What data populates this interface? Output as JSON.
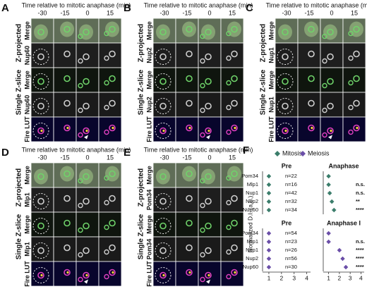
{
  "panels": [
    {
      "letter": "A",
      "title": "Time relative to mitotic anaphase (min)",
      "columns": [
        "-30",
        "-15",
        "0",
        "15"
      ],
      "groups": [
        "Z-projected",
        "Single Z-slice"
      ],
      "rows": [
        "Merge",
        "Nup60",
        "Merge",
        "Nup60",
        "Fire LUT"
      ]
    },
    {
      "letter": "B",
      "title": "Time relative to mitotic anaphase (min)",
      "columns": [
        "-30",
        "-15",
        "0",
        "15"
      ],
      "groups": [
        "Z-projected",
        "Single Z-slice"
      ],
      "rows": [
        "Merge",
        "Nup2",
        "Merge",
        "Nup2",
        "Fire LUT"
      ]
    },
    {
      "letter": "C",
      "title": "Time relative to mitotic anaphase (min)",
      "columns": [
        "-30",
        "-15",
        "0",
        "15"
      ],
      "groups": [
        "Z-projected",
        "Single Z-slice"
      ],
      "rows": [
        "Merge",
        "Nup1",
        "Merge",
        "Nup1",
        "Fire LUT"
      ]
    },
    {
      "letter": "D",
      "title": "Time relative to mitotic anaphase (min)",
      "columns": [
        "-30",
        "-15",
        "0",
        "15"
      ],
      "groups": [
        "Z-projected",
        "Single Z-slice"
      ],
      "rows": [
        "Merge",
        "Mlp1",
        "Merge",
        "Mlp1",
        "Fire LUT"
      ]
    },
    {
      "letter": "E",
      "title": "Time relative to mitotic anaphase (min)",
      "columns": [
        "-30",
        "-15",
        "0",
        "15"
      ],
      "groups": [
        "Z-projected",
        "Single Z-slice"
      ],
      "rows": [
        "Merge",
        "Pom34",
        "Merge",
        "Pom34",
        "Fire LUT"
      ]
    }
  ],
  "chart_data": [
    {
      "type": "dot",
      "panel_label": "F",
      "ylabel": "Normalized D.I. (a.u.)",
      "legend": "Mitosis",
      "color": "#3b7d6b",
      "categories": [
        "Pom34",
        "Mlp1",
        "Nup1",
        "Nup2",
        "Nup60"
      ],
      "groups": [
        {
          "title": "Pre",
          "values": [
            1.0,
            1.0,
            1.0,
            1.0,
            1.0
          ]
        },
        {
          "title": "Anaphase",
          "values": [
            1.0,
            1.0,
            1.1,
            1.3,
            1.5
          ]
        }
      ],
      "n_labels": [
        "n=22",
        "n=16",
        "n=42",
        "n=32",
        "n=34"
      ],
      "significance": [
        null,
        "n.s.",
        "n.s.",
        "**",
        "****"
      ],
      "xlim": [
        0.5,
        4.3
      ]
    },
    {
      "type": "dot",
      "legend": "Meiosis",
      "color": "#6b4fa8",
      "categories": [
        "Pom34",
        "Mlp1",
        "Nup1",
        "Nup2",
        "Nup60"
      ],
      "groups": [
        {
          "title": "Pre",
          "values": [
            1.0,
            1.0,
            1.0,
            1.0,
            1.0
          ]
        },
        {
          "title": "Anaphase I",
          "values": [
            1.0,
            1.0,
            2.0,
            2.3,
            2.6
          ]
        }
      ],
      "n_labels": [
        "n=54",
        "n=23",
        "n=26",
        "n=56",
        "n=30"
      ],
      "significance": [
        null,
        "n.s.",
        "****",
        "****",
        "****"
      ],
      "xlim": [
        0.5,
        4.3
      ],
      "xticks": [
        1,
        2,
        3,
        4
      ]
    }
  ]
}
